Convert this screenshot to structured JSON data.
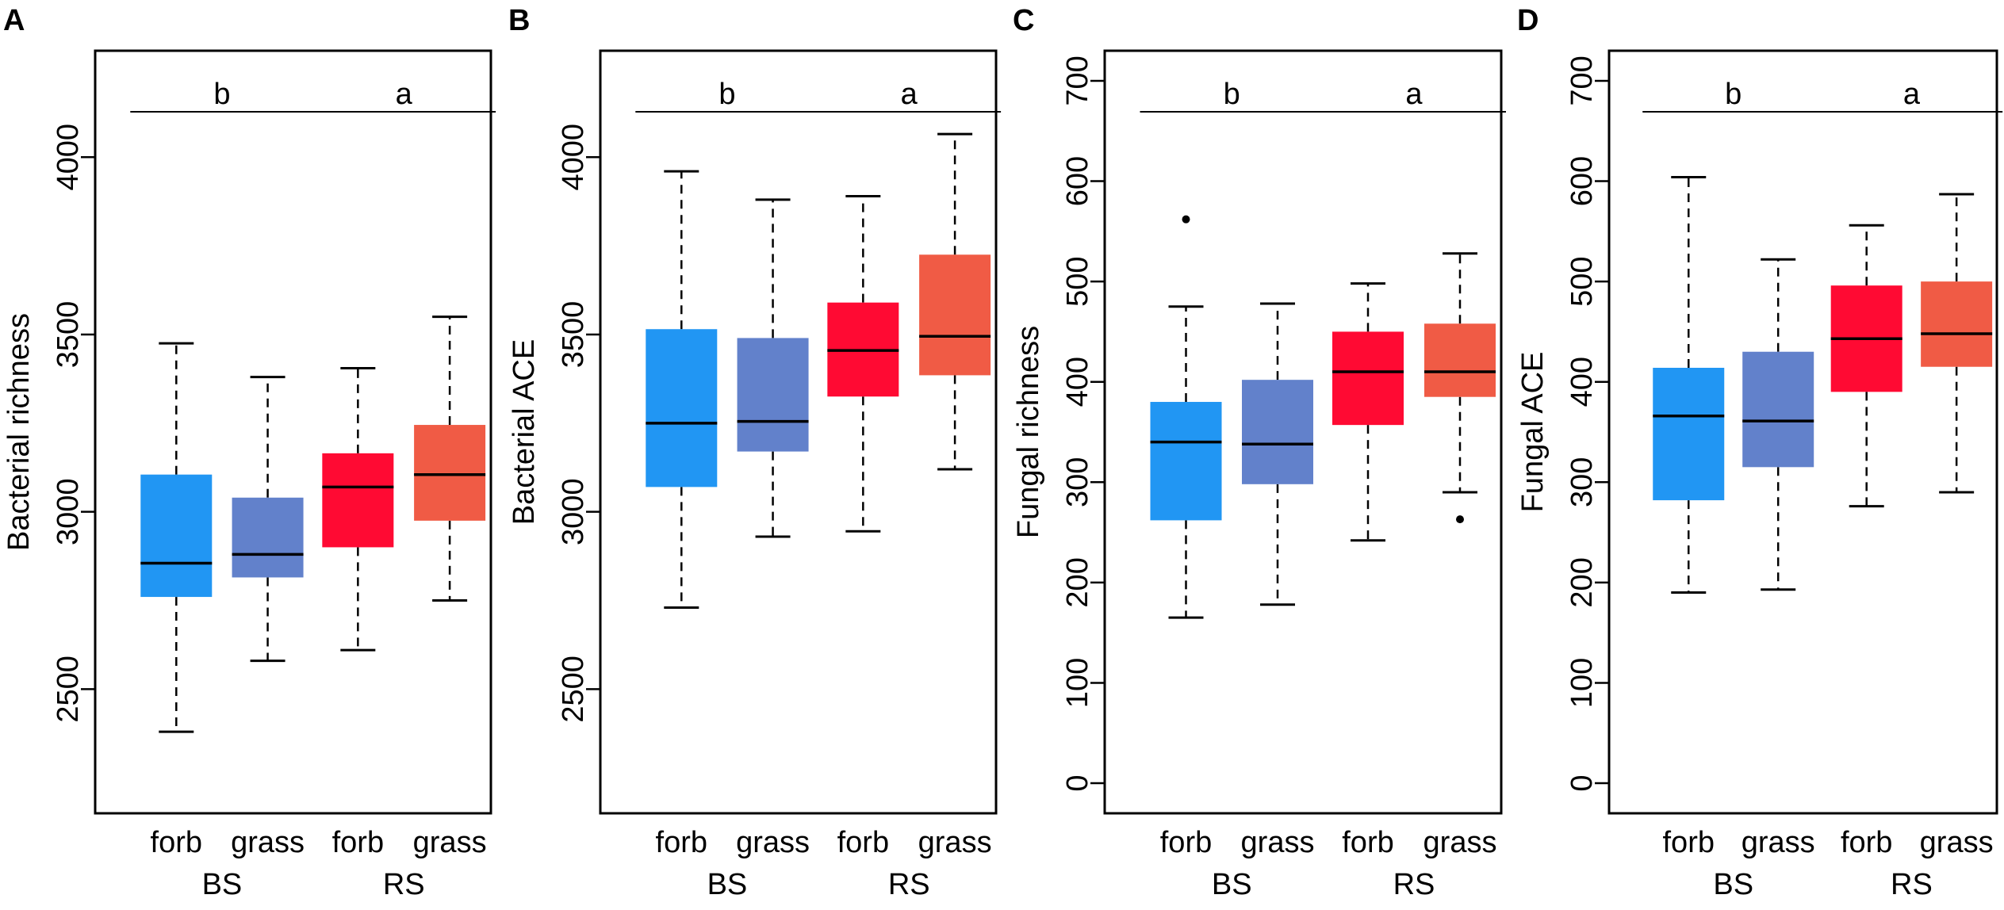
{
  "figure_colors": {
    "bs_forb": "#2196f3",
    "bs_grass": "#6281cb",
    "rs_forb": "#ff0a33",
    "rs_grass": "#f05b45"
  },
  "chart_data": [
    {
      "type": "boxplot",
      "panel": "A",
      "ylabel": "Bacterial richness",
      "ylim": [
        2150,
        4300
      ],
      "yticks": [
        2500,
        3000,
        3500,
        4000
      ],
      "categories": [
        "forb",
        "grass",
        "forb",
        "grass"
      ],
      "groups": [
        {
          "label": "BS",
          "members": [
            0,
            1
          ]
        },
        {
          "label": "RS",
          "members": [
            2,
            3
          ]
        }
      ],
      "significance": [
        {
          "letter": "b",
          "members": [
            0,
            1
          ]
        },
        {
          "letter": "a",
          "members": [
            2,
            3
          ]
        }
      ],
      "boxes": [
        {
          "category": "forb",
          "group": "BS",
          "min": 2380,
          "q1": 2760,
          "median": 2855,
          "q3": 3105,
          "max": 3475,
          "outliers": []
        },
        {
          "category": "grass",
          "group": "BS",
          "min": 2580,
          "q1": 2815,
          "median": 2880,
          "q3": 3040,
          "max": 3380,
          "outliers": []
        },
        {
          "category": "forb",
          "group": "RS",
          "min": 2610,
          "q1": 2900,
          "median": 3070,
          "q3": 3165,
          "max": 3405,
          "outliers": []
        },
        {
          "category": "grass",
          "group": "RS",
          "min": 2750,
          "q1": 2975,
          "median": 3105,
          "q3": 3245,
          "max": 3550,
          "outliers": []
        }
      ]
    },
    {
      "type": "boxplot",
      "panel": "B",
      "ylabel": "Bacterial ACE",
      "ylim": [
        2150,
        4300
      ],
      "yticks": [
        2500,
        3000,
        3500,
        4000
      ],
      "categories": [
        "forb",
        "grass",
        "forb",
        "grass"
      ],
      "groups": [
        {
          "label": "BS",
          "members": [
            0,
            1
          ]
        },
        {
          "label": "RS",
          "members": [
            2,
            3
          ]
        }
      ],
      "significance": [
        {
          "letter": "b",
          "members": [
            0,
            1
          ]
        },
        {
          "letter": "a",
          "members": [
            2,
            3
          ]
        }
      ],
      "boxes": [
        {
          "category": "forb",
          "group": "BS",
          "min": 2730,
          "q1": 3070,
          "median": 3250,
          "q3": 3515,
          "max": 3960,
          "outliers": []
        },
        {
          "category": "grass",
          "group": "BS",
          "min": 2930,
          "q1": 3170,
          "median": 3255,
          "q3": 3490,
          "max": 3880,
          "outliers": []
        },
        {
          "category": "forb",
          "group": "RS",
          "min": 2945,
          "q1": 3325,
          "median": 3455,
          "q3": 3590,
          "max": 3890,
          "outliers": []
        },
        {
          "category": "grass",
          "group": "RS",
          "min": 3120,
          "q1": 3385,
          "median": 3495,
          "q3": 3725,
          "max": 4065,
          "outliers": []
        }
      ]
    },
    {
      "type": "boxplot",
      "panel": "C",
      "ylabel": "Fungal richness",
      "ylim": [
        -30,
        730
      ],
      "yticks": [
        0,
        100,
        200,
        300,
        400,
        500,
        600,
        700
      ],
      "categories": [
        "forb",
        "grass",
        "forb",
        "grass"
      ],
      "groups": [
        {
          "label": "BS",
          "members": [
            0,
            1
          ]
        },
        {
          "label": "RS",
          "members": [
            2,
            3
          ]
        }
      ],
      "significance": [
        {
          "letter": "b",
          "members": [
            0,
            1
          ]
        },
        {
          "letter": "a",
          "members": [
            2,
            3
          ]
        }
      ],
      "boxes": [
        {
          "category": "forb",
          "group": "BS",
          "min": 165,
          "q1": 262,
          "median": 340,
          "q3": 380,
          "max": 475,
          "outliers": [
            562
          ]
        },
        {
          "category": "grass",
          "group": "BS",
          "min": 178,
          "q1": 298,
          "median": 338,
          "q3": 402,
          "max": 478,
          "outliers": []
        },
        {
          "category": "forb",
          "group": "RS",
          "min": 242,
          "q1": 357,
          "median": 410,
          "q3": 450,
          "max": 498,
          "outliers": []
        },
        {
          "category": "grass",
          "group": "RS",
          "min": 290,
          "q1": 385,
          "median": 410,
          "q3": 458,
          "max": 528,
          "outliers": [
            263
          ]
        }
      ]
    },
    {
      "type": "boxplot",
      "panel": "D",
      "ylabel": "Fungal ACE",
      "ylim": [
        -30,
        730
      ],
      "yticks": [
        0,
        100,
        200,
        300,
        400,
        500,
        600,
        700
      ],
      "categories": [
        "forb",
        "grass",
        "forb",
        "grass"
      ],
      "groups": [
        {
          "label": "BS",
          "members": [
            0,
            1
          ]
        },
        {
          "label": "RS",
          "members": [
            2,
            3
          ]
        }
      ],
      "significance": [
        {
          "letter": "b",
          "members": [
            0,
            1
          ]
        },
        {
          "letter": "a",
          "members": [
            2,
            3
          ]
        }
      ],
      "boxes": [
        {
          "category": "forb",
          "group": "BS",
          "min": 190,
          "q1": 282,
          "median": 366,
          "q3": 414,
          "max": 604,
          "outliers": []
        },
        {
          "category": "grass",
          "group": "BS",
          "min": 193,
          "q1": 315,
          "median": 361,
          "q3": 430,
          "max": 522,
          "outliers": []
        },
        {
          "category": "forb",
          "group": "RS",
          "min": 276,
          "q1": 390,
          "median": 443,
          "q3": 496,
          "max": 556,
          "outliers": []
        },
        {
          "category": "grass",
          "group": "RS",
          "min": 290,
          "q1": 415,
          "median": 448,
          "q3": 500,
          "max": 587,
          "outliers": []
        }
      ]
    }
  ]
}
